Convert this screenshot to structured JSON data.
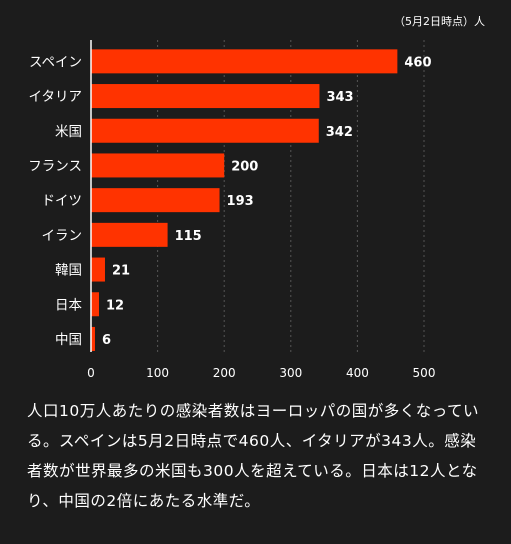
{
  "chart_data": {
    "type": "bar",
    "orientation": "horizontal",
    "date_note": "（5月2日時点）",
    "unit": "人",
    "categories": [
      "スペイン",
      "イタリア",
      "米国",
      "フランス",
      "ドイツ",
      "イラン",
      "韓国",
      "日本",
      "中国"
    ],
    "values": [
      460,
      343,
      342,
      200,
      193,
      115,
      21,
      12,
      6
    ],
    "data_labels": [
      "460",
      "343",
      "342",
      "200",
      "193",
      "115",
      "21",
      "12",
      "6"
    ],
    "xlim": [
      0,
      500
    ],
    "xticks": [
      "0",
      "100",
      "200",
      "300",
      "400",
      "500"
    ],
    "grid": "vertical dashed",
    "bar_color": "#ff3300"
  },
  "caption": "人口10万人あたりの感染者数はヨーロッパの国が多くなっている。スペインは5月2日時点で460人、イタリアが343人。感染者数が世界最多の米国も300人を超えている。日本は12人となり、中国の2倍にあたる水準だ。"
}
